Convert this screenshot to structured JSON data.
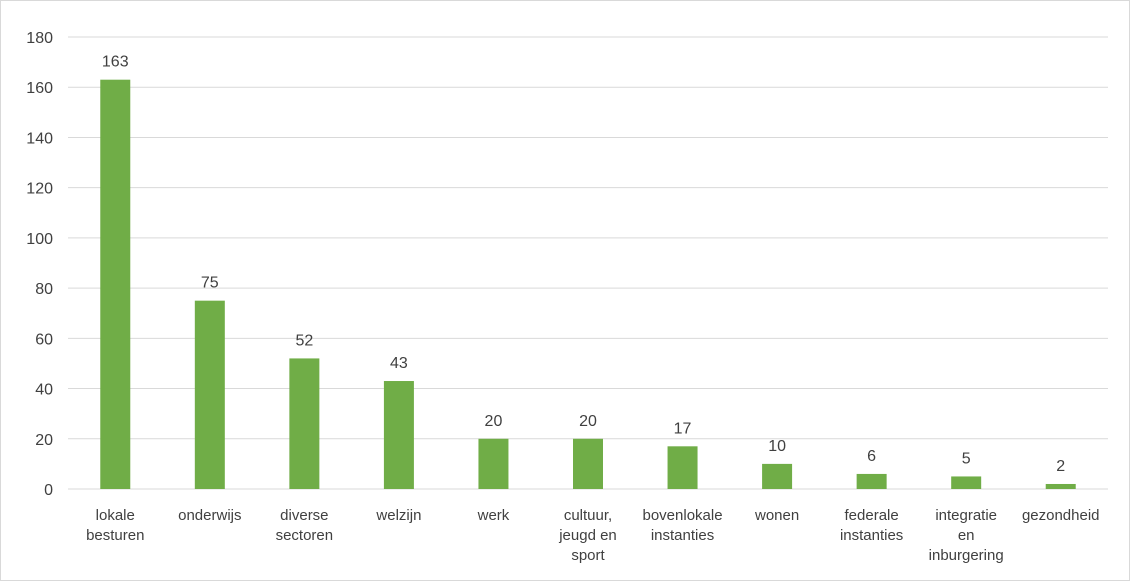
{
  "chart_data": {
    "type": "bar",
    "categories": [
      "lokale besturen",
      "onderwijs",
      "diverse sectoren",
      "welzijn",
      "werk",
      "cultuur, jeugd en sport",
      "bovenlokale instanties",
      "wonen",
      "federale instanties",
      "integratie en inburgering",
      "gezondheid"
    ],
    "category_lines": [
      [
        "lokale",
        "besturen"
      ],
      [
        "onderwijs"
      ],
      [
        "diverse",
        "sectoren"
      ],
      [
        "welzijn"
      ],
      [
        "werk"
      ],
      [
        "cultuur,",
        "jeugd en",
        "sport"
      ],
      [
        "bovenlokale",
        "instanties"
      ],
      [
        "wonen"
      ],
      [
        "federale",
        "instanties"
      ],
      [
        "integratie",
        "en",
        "inburgering"
      ],
      [
        "gezondheid"
      ]
    ],
    "values": [
      163,
      75,
      52,
      43,
      20,
      20,
      17,
      10,
      6,
      5,
      2
    ],
    "title": "",
    "xlabel": "",
    "ylabel": "",
    "ylim": [
      0,
      180
    ],
    "yticks": [
      0,
      20,
      40,
      60,
      80,
      100,
      120,
      140,
      160,
      180
    ],
    "grid": true,
    "legend": "none",
    "bar_color": "#70ad47",
    "grid_color": "#d9d9d9",
    "text_color": "#404040"
  }
}
